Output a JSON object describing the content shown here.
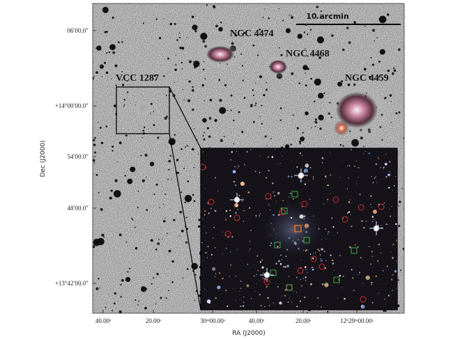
{
  "labels": [
    "NGC 4474",
    "NGC 4468",
    "NGC 4459",
    "VCC 1287"
  ],
  "scale_bar": "10 arcmin",
  "y_axis": {
    "title": "Dec (J2000)",
    "ticks": [
      "06′00.0″",
      "+14°00′00.0″",
      "54′00.0″",
      "48′00.0″",
      "+13°42′00.0″"
    ]
  },
  "x_axis": {
    "title": "RA (J2000)",
    "ticks": [
      "40.00ˢ",
      "20.00ˢ",
      "30ᵐ00.00ˢ",
      "40.00ˢ",
      "20.00ˢ",
      "12ʰ29ᵐ00.00ˢ"
    ]
  }
}
